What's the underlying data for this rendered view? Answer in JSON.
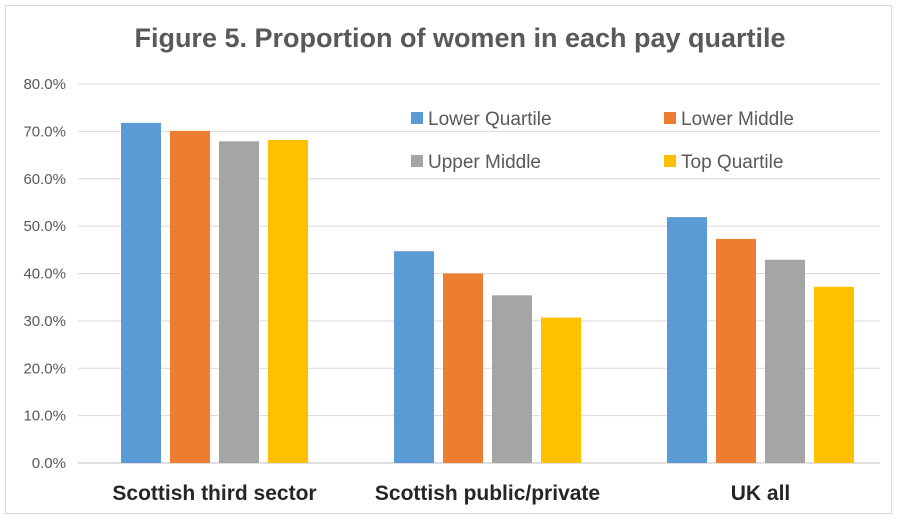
{
  "chart_data": {
    "type": "bar",
    "title": "Figure 5. Proportion of women in each pay quartile",
    "xlabel": "",
    "ylabel": "",
    "categories": [
      "Scottish third sector",
      "Scottish public/private",
      "UK all"
    ],
    "series": [
      {
        "name": "Lower Quartile",
        "color": "#5b9bd5",
        "values": [
          71.8,
          44.7,
          51.9
        ]
      },
      {
        "name": "Lower Middle",
        "color": "#ed7d31",
        "values": [
          70.1,
          40.0,
          47.3
        ]
      },
      {
        "name": "Upper Middle",
        "color": "#a5a5a5",
        "values": [
          67.9,
          35.4,
          42.9
        ]
      },
      {
        "name": "Top Quartile",
        "color": "#ffc000",
        "values": [
          68.2,
          30.7,
          37.2
        ]
      }
    ],
    "ylim": [
      0,
      80
    ],
    "yticks": [
      "0.0%",
      "10.0%",
      "20.0%",
      "30.0%",
      "40.0%",
      "50.0%",
      "60.0%",
      "70.0%",
      "80.0%"
    ],
    "grid": true,
    "legend_position": "top-right"
  }
}
